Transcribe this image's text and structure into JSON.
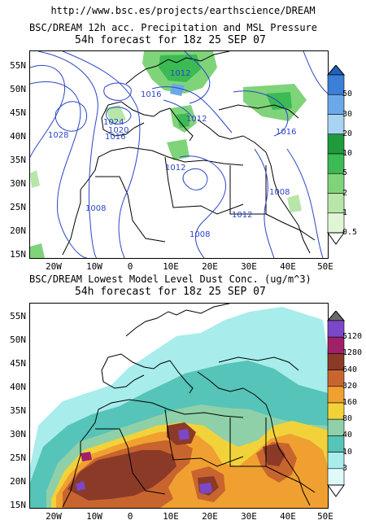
{
  "header": {
    "url": "http://www.bsc.es/projects/earthscience/DREAM"
  },
  "panel1": {
    "title": "BSC/DREAM 12h acc. Precipitation and MSL Pressure",
    "subtitle": "54h forecast for 18z 25 SEP 07",
    "isobar_labels": [
      "1012",
      "1016",
      "1024",
      "1020",
      "1016",
      "1028",
      "1012",
      "1016",
      "1012",
      "1008",
      "1008",
      "1012",
      "1008"
    ],
    "colorbar": {
      "labels": [
        "50",
        "30",
        "20",
        "10",
        "5",
        "2",
        "1",
        "0.5"
      ],
      "colors": [
        "#3a7fd8",
        "#6aa8e8",
        "#a8d4f2",
        "#1f9a3c",
        "#3cba54",
        "#7fd47a",
        "#b8e6a8",
        "#e0f5d6"
      ]
    },
    "colors": {
      "precip_light": "#b8e6a8",
      "precip_mid": "#5cc665",
      "precip_heavy": "#1f9a3c",
      "precip_blue": "#6aa8e8",
      "isobar": "#2b45c8"
    }
  },
  "panel2": {
    "title": "BSC/DREAM Lowest Model Level Dust Conc. (ug/m^3)",
    "subtitle": "54h forecast for 18z 25 SEP 07",
    "colorbar": {
      "labels": [
        "5120",
        "1280",
        "640",
        "320",
        "160",
        "80",
        "40",
        "10",
        "3"
      ],
      "colors": [
        "#7a48c8",
        "#a0206a",
        "#8b3a28",
        "#c8652e",
        "#f0a030",
        "#f2d23a",
        "#8fd0a8",
        "#56c4b8",
        "#a8ecec",
        "#e0fafa"
      ]
    },
    "colors": {
      "dust_low": "#a8ecec",
      "dust_mid": "#56c4b8",
      "dust_yellow": "#f2d23a",
      "dust_orange": "#f0a030",
      "dust_brown": "#8b3a28",
      "dust_purple": "#7a48c8"
    }
  },
  "axes": {
    "lat_labels": [
      "55N",
      "50N",
      "45N",
      "40N",
      "35N",
      "30N",
      "25N",
      "20N",
      "15N"
    ],
    "lon_labels": [
      "20W",
      "10W",
      "0",
      "10E",
      "20E",
      "30E",
      "40E",
      "50E"
    ]
  }
}
